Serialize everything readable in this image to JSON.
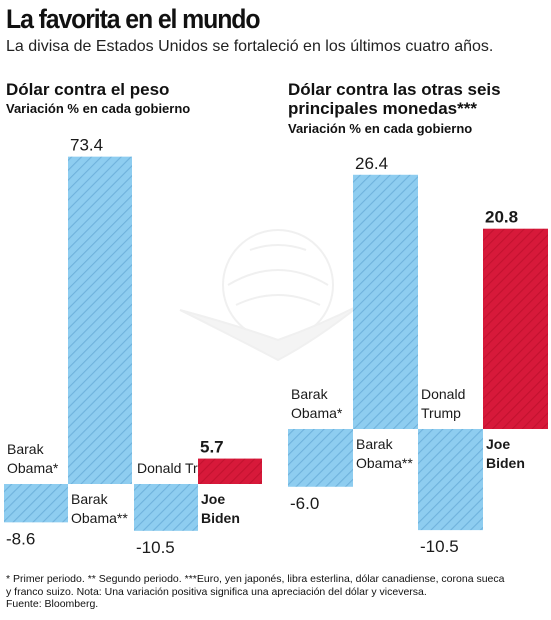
{
  "title": "La favorita en el mundo",
  "subtitle": "La divisa de Estados Unidos se fortaleció en los últimos cuatro años.",
  "notes": {
    "line1": "* Primer periodo. ** Segundo periodo. ***Euro, yen japonés, libra esterlina, dólar canadiense, corona sueca",
    "line2": "y franco suizo. Nota: Una variación positiva significa una apreciación del dólar y viceversa.",
    "line3": "Fuente: Bloomberg."
  },
  "colors": {
    "bar_blue": "#8ecdf0",
    "bar_hatch": "#6fb2dc",
    "bar_red": "#d7193a",
    "highlight": "#d7193a"
  },
  "chart_data": [
    {
      "type": "bar",
      "title": "Dólar contra el peso",
      "subtitle": "Variación % en cada gobierno",
      "categories": [
        {
          "line1": "Barak",
          "line2": "Obama*"
        },
        {
          "line1": "Barak",
          "line2": "Obama**"
        },
        {
          "line1": "Donald",
          "line2": "Trump"
        },
        {
          "line1": "Joe",
          "line2": "Biden"
        }
      ],
      "values": [
        -8.6,
        73.4,
        -10.5,
        5.7
      ],
      "value_labels": [
        "-8.6",
        "73.4",
        "-10.5",
        "5.7"
      ],
      "highlight_index": 3
    },
    {
      "type": "bar",
      "title_line1": "Dólar contra las otras seis",
      "title_line2": "principales monedas***",
      "subtitle": "Variación % en cada gobierno",
      "categories": [
        {
          "line1": "Barak",
          "line2": "Obama*"
        },
        {
          "line1": "Barak",
          "line2": "Obama**"
        },
        {
          "line1": "Donald",
          "line2": "Trump"
        },
        {
          "line1": "Joe",
          "line2": "Biden"
        }
      ],
      "values": [
        -6.0,
        26.4,
        -10.5,
        20.8
      ],
      "value_labels": [
        "-6.0",
        "26.4",
        "-10.5",
        "20.8"
      ],
      "highlight_index": 3
    }
  ]
}
